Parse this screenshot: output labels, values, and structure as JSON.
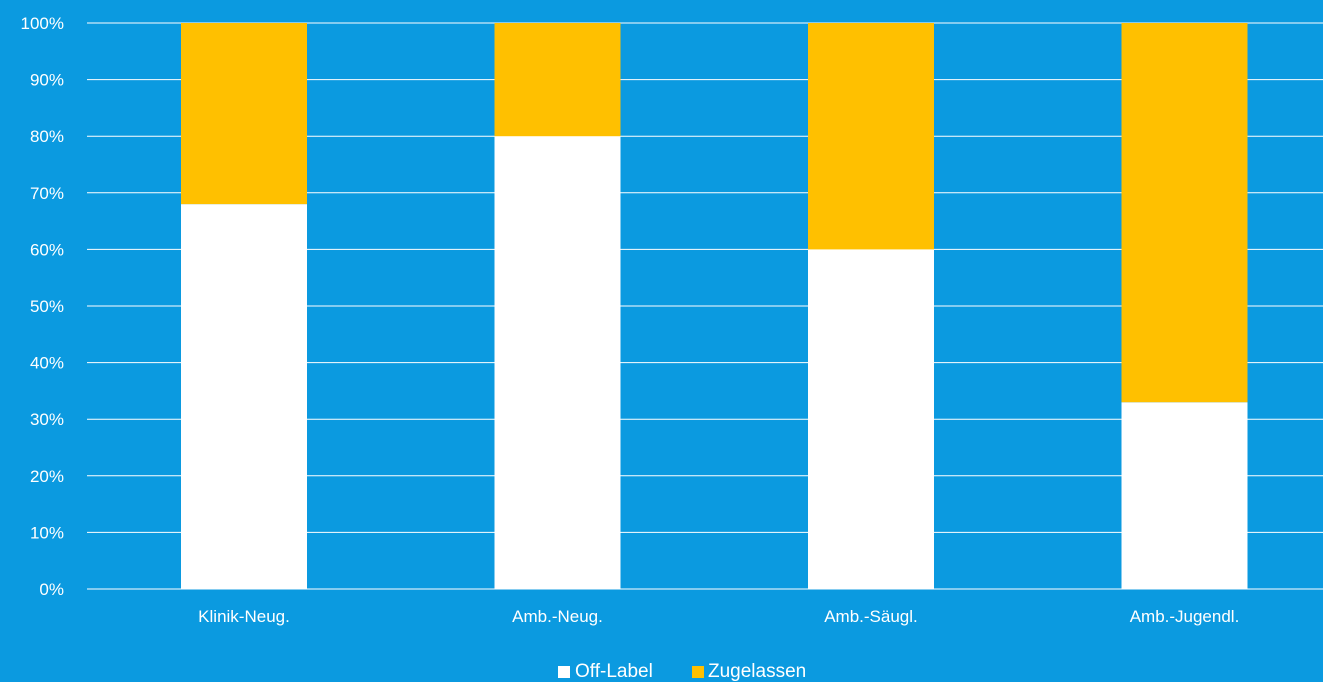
{
  "colors": {
    "background": "#0b9ae0",
    "gridline": "#ffffff",
    "off_label": "#ffffff",
    "zugelassen": "#ffc000",
    "text": "#ffffff"
  },
  "chart_data": {
    "type": "bar",
    "stacked": true,
    "categories": [
      "Klinik-Neug.",
      "Amb.-Neug.",
      "Amb.-Säugl.",
      "Amb.-Jugendl."
    ],
    "series": [
      {
        "name": "Off-Label",
        "values": [
          68,
          80,
          60,
          33
        ],
        "color": "#ffffff"
      },
      {
        "name": "Zugelassen",
        "values": [
          32,
          20,
          40,
          67
        ],
        "color": "#ffc000"
      }
    ],
    "ylim": [
      0,
      100
    ],
    "yticks": [
      "0%",
      "10%",
      "20%",
      "30%",
      "40%",
      "50%",
      "60%",
      "70%",
      "80%",
      "90%",
      "100%"
    ],
    "grid": true,
    "legend": "bottom",
    "title": "",
    "xlabel": "",
    "ylabel": ""
  },
  "legend": {
    "items": [
      {
        "label": "Off-Label"
      },
      {
        "label": "Zugelassen"
      }
    ]
  }
}
